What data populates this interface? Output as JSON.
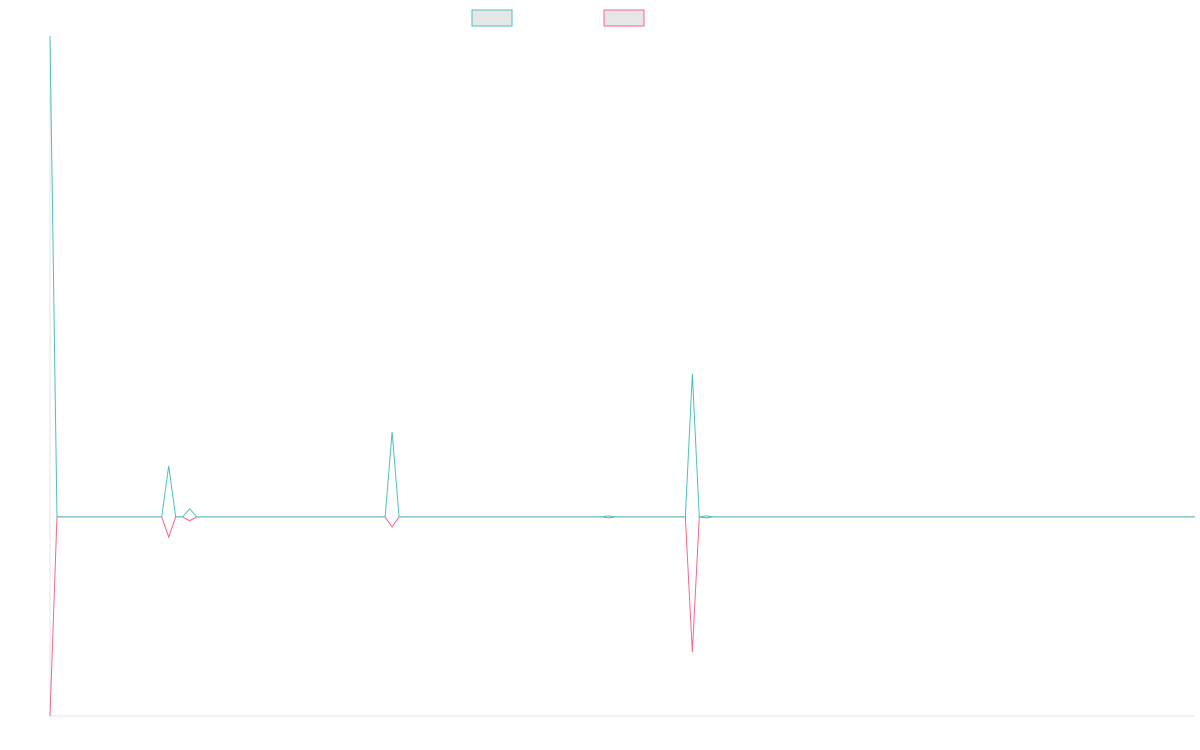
{
  "chart_data": {
    "type": "line",
    "x": [
      0,
      1,
      16,
      17,
      18,
      19,
      20,
      21,
      48,
      49,
      50,
      79,
      80,
      81,
      91,
      92,
      93,
      94,
      95,
      164
    ],
    "xlim": [
      0,
      164
    ],
    "ylim": [
      -41.4,
      100
    ],
    "series": [
      {
        "color": "#4bc0c0",
        "values": [
          100,
          0,
          0,
          10.6,
          0,
          0,
          1.7,
          0,
          0,
          17.7,
          0,
          0,
          0.2,
          0,
          0,
          29.7,
          0,
          0.2,
          0,
          0
        ]
      },
      {
        "color": "#ff6384",
        "values": [
          -41.4,
          0,
          0,
          -4.2,
          0,
          0,
          -0.8,
          0,
          0,
          -2.1,
          0,
          0,
          -0.2,
          0,
          0,
          -28.1,
          0,
          -0.2,
          0,
          0
        ]
      }
    ]
  }
}
